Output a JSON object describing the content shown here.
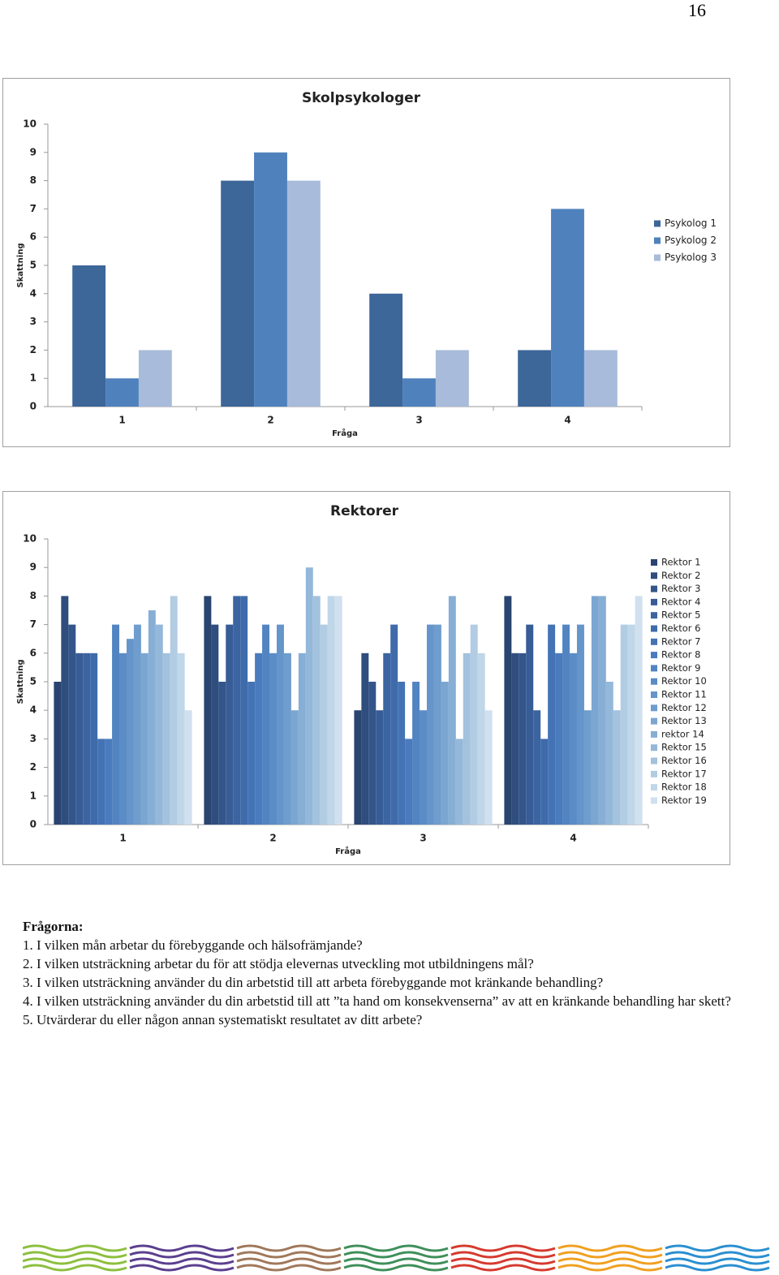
{
  "page_number": "16",
  "chart_data": [
    {
      "type": "bar",
      "title": "Skolpsykologer",
      "x_label": "Fråga",
      "y_label": "Skattning",
      "categories": [
        "1",
        "2",
        "3",
        "4"
      ],
      "series": [
        {
          "name": "Psykolog 1",
          "color": "#3d6699",
          "values": [
            5,
            8,
            4,
            2
          ]
        },
        {
          "name": "Psykolog 2",
          "color": "#4f81bd",
          "values": [
            1,
            9,
            1,
            7
          ]
        },
        {
          "name": "Psykolog 3",
          "color": "#a8bbda",
          "values": [
            2,
            8,
            2,
            2
          ]
        }
      ],
      "ylim": [
        0,
        10
      ],
      "yticks": [
        0,
        1,
        2,
        3,
        4,
        5,
        6,
        7,
        8,
        9,
        10
      ],
      "grid": false,
      "legend": "right"
    },
    {
      "type": "bar",
      "title": "Rektorer",
      "x_label": "Fråga",
      "y_label": "Skattning",
      "categories": [
        "1",
        "2",
        "3",
        "4"
      ],
      "series": [
        {
          "name": "Rektor 1",
          "color": "#2a4470",
          "values": [
            5,
            8,
            4,
            8
          ]
        },
        {
          "name": "Rektor 2",
          "color": "#2f4d7d",
          "values": [
            8,
            7,
            6,
            6
          ]
        },
        {
          "name": "Rektor 3",
          "color": "#33558a",
          "values": [
            7,
            5,
            5,
            6
          ]
        },
        {
          "name": "Rektor 4",
          "color": "#375c96",
          "values": [
            6,
            7,
            4,
            7
          ]
        },
        {
          "name": "Rektor 5",
          "color": "#3b64a1",
          "values": [
            6,
            8,
            6,
            4
          ]
        },
        {
          "name": "Rektor 6",
          "color": "#3f6bab",
          "values": [
            6,
            8,
            7,
            3
          ]
        },
        {
          "name": "Rektor 7",
          "color": "#4473b5",
          "values": [
            3,
            5,
            5,
            7
          ]
        },
        {
          "name": "Rektor 8",
          "color": "#4a7bbd",
          "values": [
            3,
            6,
            3,
            6
          ]
        },
        {
          "name": "Rektor 9",
          "color": "#5284c2",
          "values": [
            7,
            7,
            5,
            7
          ]
        },
        {
          "name": "Rektor 10",
          "color": "#5b8cc6",
          "values": [
            6,
            6,
            4,
            6
          ]
        },
        {
          "name": "Rektor 11",
          "color": "#6595ca",
          "values": [
            6.5,
            7,
            7,
            7
          ]
        },
        {
          "name": "Rektor 12",
          "color": "#6f9dcd",
          "values": [
            7,
            6,
            7,
            4
          ]
        },
        {
          "name": "Rektor 13",
          "color": "#7ba6d1",
          "values": [
            6,
            4,
            5,
            8
          ]
        },
        {
          "name": "rektor 14",
          "color": "#87afd5",
          "values": [
            7.5,
            6,
            8,
            8
          ]
        },
        {
          "name": "Rektor 15",
          "color": "#94b8d9",
          "values": [
            7,
            9,
            3,
            5
          ]
        },
        {
          "name": "Rektor 16",
          "color": "#a2c2de",
          "values": [
            6,
            8,
            6,
            4
          ]
        },
        {
          "name": "Rektor 17",
          "color": "#b1cce3",
          "values": [
            8,
            7,
            7,
            7
          ]
        },
        {
          "name": "Rektor 18",
          "color": "#c0d6e9",
          "values": [
            6,
            8,
            6,
            7
          ]
        },
        {
          "name": "Rektor 19",
          "color": "#d0e0ef",
          "values": [
            4,
            8,
            4,
            8
          ]
        }
      ],
      "ylim": [
        0,
        10
      ],
      "yticks": [
        0,
        1,
        2,
        3,
        4,
        5,
        6,
        7,
        8,
        9,
        10
      ],
      "grid": false,
      "legend": "right"
    }
  ],
  "questions": {
    "heading": "Frågorna:",
    "items": [
      "1. I vilken mån arbetar du förebyggande och hälsofrämjande?",
      "2. I vilken utsträckning arbetar du för att stödja elevernas utveckling mot utbildningens mål?",
      "3. I vilken utsträckning använder du din arbetstid till att arbeta förebyggande mot kränkande behandling?",
      "4. I vilken utsträckning använder du din arbetstid till att ”ta hand om konsekvenserna” av att en kränkande behandling har skett?",
      "5. Utvärderar du eller någon annan systematiskt resultatet av ditt arbete?"
    ]
  }
}
